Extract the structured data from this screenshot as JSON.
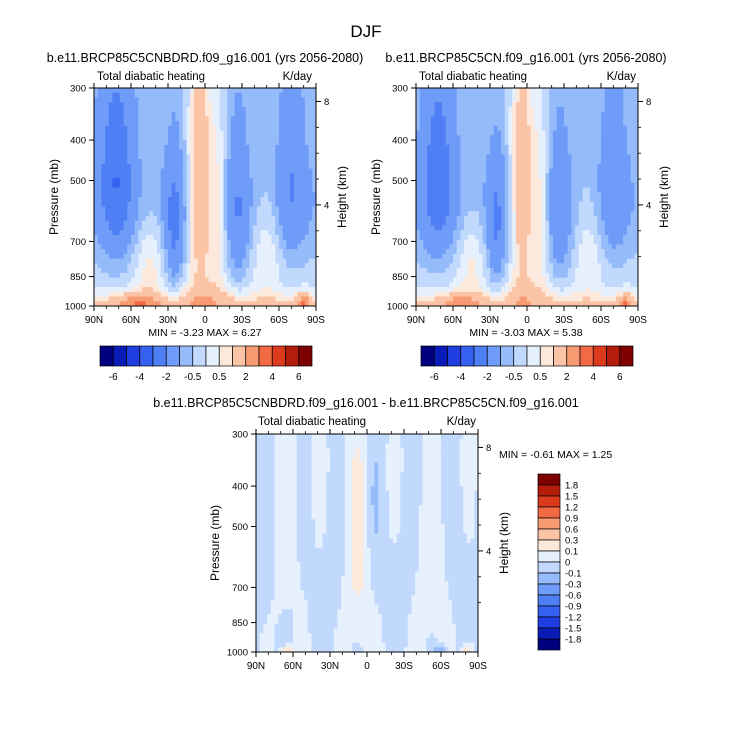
{
  "page": {
    "title": "DJF"
  },
  "palette": {
    "heating_levels": [
      -6,
      -5,
      -4,
      -3,
      -2,
      -1,
      -0.5,
      0,
      0.5,
      1,
      2,
      3,
      4,
      5,
      6
    ],
    "heating_colors": [
      "#00007f",
      "#0a1cb8",
      "#1f3de0",
      "#3660f0",
      "#4f7ff5",
      "#6e9cf8",
      "#95bbfa",
      "#c1d9fc",
      "#e7f0fd",
      "#fde9dc",
      "#fbc4a6",
      "#f89a72",
      "#f26a43",
      "#dc3a1c",
      "#b51d0b",
      "#7f0000"
    ],
    "diff_levels": [
      -1.8,
      -1.5,
      -1.2,
      -0.9,
      -0.6,
      -0.3,
      -0.1,
      0,
      0.1,
      0.3,
      0.6,
      0.9,
      1.2,
      1.5,
      1.8
    ],
    "diff_colors": [
      "#00007f",
      "#0a1cb8",
      "#1f3de0",
      "#3660f0",
      "#4f7ff5",
      "#6e9cf8",
      "#95bbfa",
      "#c1d9fc",
      "#e7f0fd",
      "#fde9dc",
      "#fbc4a6",
      "#f89a72",
      "#f26a43",
      "#dc3a1c",
      "#b51d0b",
      "#7f0000"
    ]
  },
  "chart_data": [
    {
      "type": "heatmap",
      "name": "panel1",
      "title": "b.e11.BRCP85C5CNBDRD.f09_g16.001 (yrs 2056-2080)",
      "left_string": "Total diabatic heating",
      "right_string": "K/day",
      "xlabel": "",
      "ylabel": "Pressure (mb)",
      "y2label": "Height (km)",
      "x_ticks": [
        "90N",
        "60N",
        "30N",
        "0",
        "30S",
        "60S",
        "90S"
      ],
      "y_ticks": [
        "300",
        "400",
        "500",
        "700",
        "850",
        "1000"
      ],
      "y2_ticks": [
        "8",
        "4"
      ],
      "xlim": [
        90,
        -90
      ],
      "ylim": [
        1000,
        300
      ],
      "min": "-3.23",
      "max": "6.27",
      "minmax_text": "MIN =  -3.23  MAX =  6.27",
      "colorbar_labels": [
        "-6",
        "-4",
        "-2",
        "-0.5",
        "0.5",
        "2",
        "4",
        "6"
      ]
    },
    {
      "type": "heatmap",
      "name": "panel2",
      "title": "b.e11.BRCP85C5CN.f09_g16.001 (yrs 2056-2080)",
      "left_string": "Total diabatic heating",
      "right_string": "K/day",
      "xlabel": "",
      "ylabel": "Pressure (mb)",
      "y2label": "Height (km)",
      "x_ticks": [
        "90N",
        "60N",
        "30N",
        "0",
        "30S",
        "60S",
        "90S"
      ],
      "y_ticks": [
        "300",
        "400",
        "500",
        "700",
        "850",
        "1000"
      ],
      "y2_ticks": [
        "8",
        "4"
      ],
      "xlim": [
        90,
        -90
      ],
      "ylim": [
        1000,
        300
      ],
      "min": "-3.03",
      "max": "5.38",
      "minmax_text": "MIN =  -3.03  MAX =  5.38",
      "colorbar_labels": [
        "-6",
        "-4",
        "-2",
        "-0.5",
        "0.5",
        "2",
        "4",
        "6"
      ]
    },
    {
      "type": "heatmap",
      "name": "difference",
      "title": "b.e11.BRCP85C5CNBDRD.f09_g16.001 - b.e11.BRCP85C5CN.f09_g16.001",
      "left_string": "Total diabatic heating",
      "right_string": "K/day",
      "xlabel": "",
      "ylabel": "Pressure (mb)",
      "y2label": "Height (km)",
      "x_ticks": [
        "90N",
        "60N",
        "30N",
        "0",
        "30S",
        "60S",
        "90S"
      ],
      "y_ticks": [
        "300",
        "400",
        "500",
        "700",
        "850",
        "1000"
      ],
      "y2_ticks": [
        "8",
        "4"
      ],
      "xlim": [
        90,
        -90
      ],
      "ylim": [
        1000,
        300
      ],
      "min": "-0.61",
      "max": "1.25",
      "minmax_text": "MIN = -0.61  MAX =  1.25",
      "colorbar_labels": [
        "1.8",
        "1.5",
        "1.2",
        "0.9",
        "0.6",
        "0.3",
        "0.1",
        "0",
        "-0.1",
        "-0.3",
        "-0.6",
        "-0.9",
        "-1.2",
        "-1.5",
        "-1.8"
      ]
    }
  ]
}
